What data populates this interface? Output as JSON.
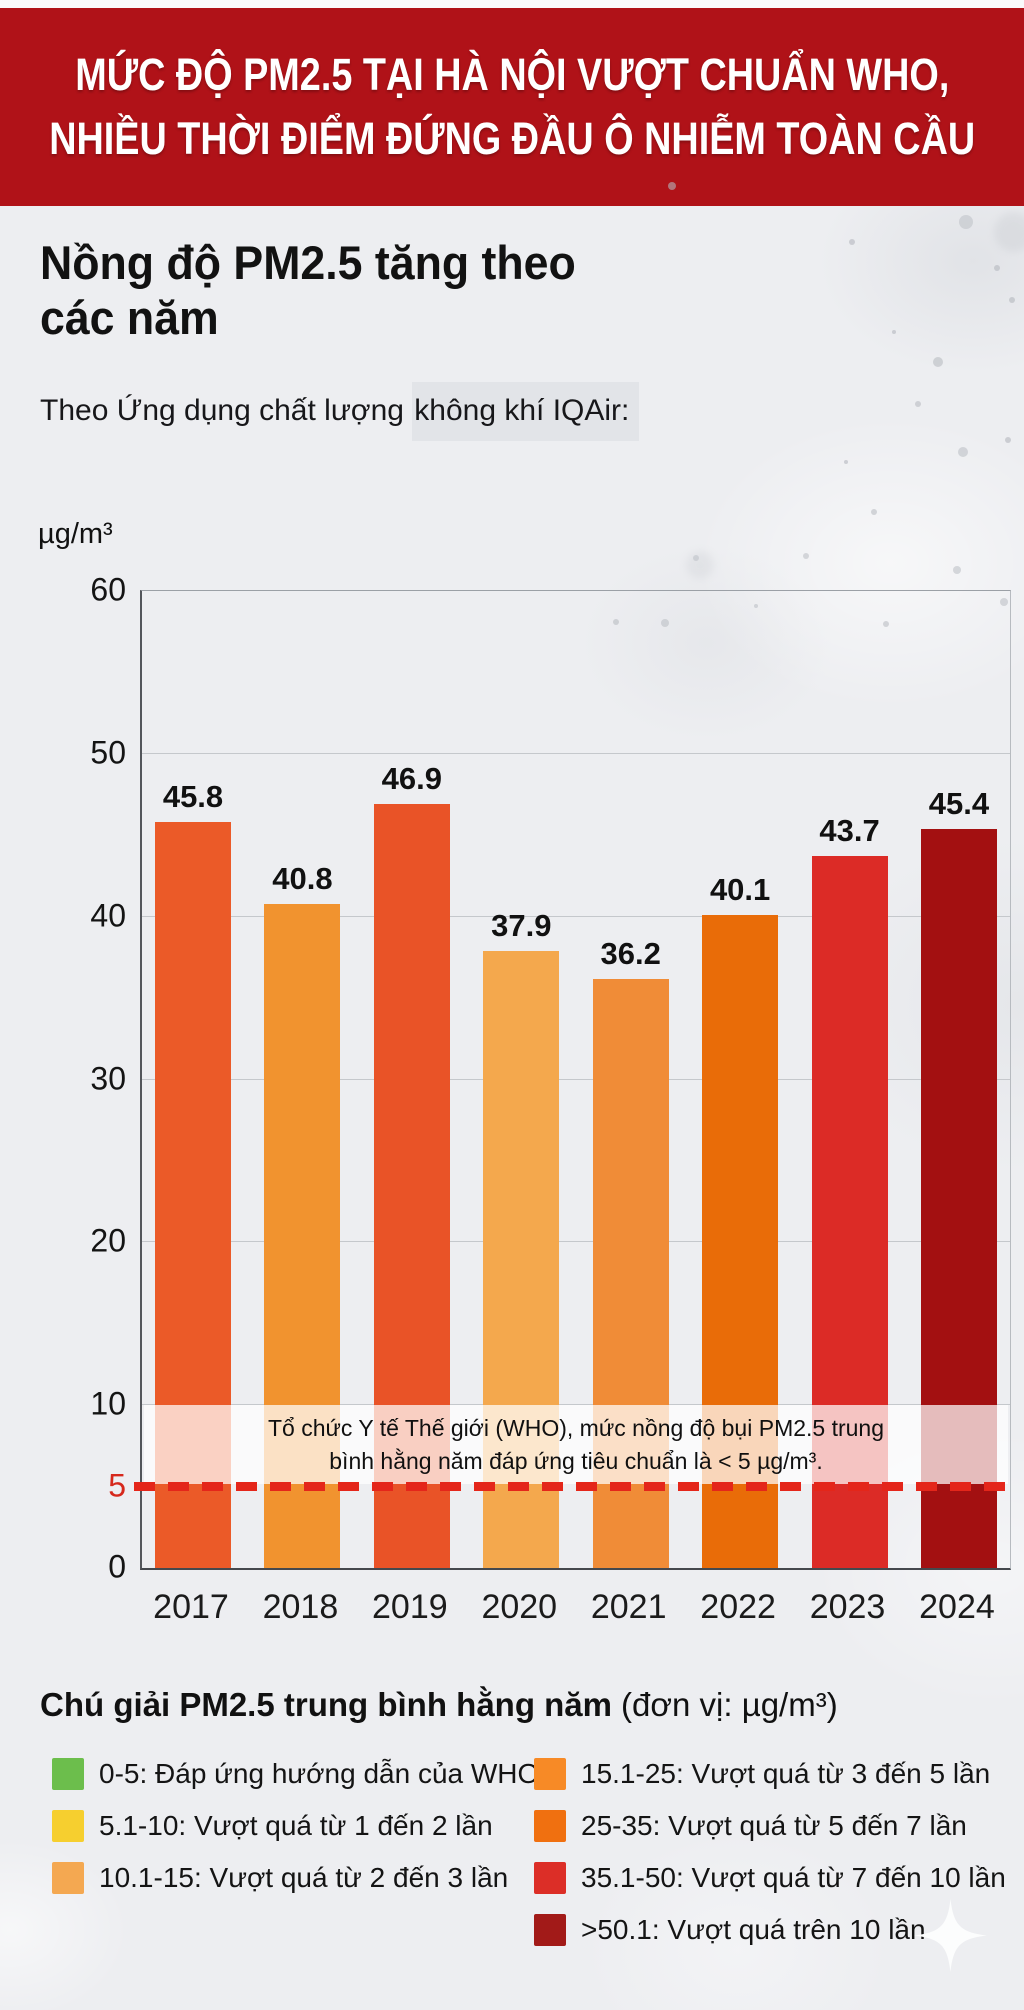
{
  "banner": {
    "line1": "MỨC ĐỘ PM2.5 TẠI HÀ NỘI VƯỢT CHUẨN WHO,",
    "line2": "NHIỀU THỜI ĐIỂM ĐỨNG ĐẦU Ô NHIỄM TOÀN CẦU",
    "bg_color": "#B01218"
  },
  "title": {
    "line1": "Nồng độ PM2.5 tăng theo",
    "line2": "các năm"
  },
  "subtitle": {
    "prefix": "Theo Ứng dụng chất lượng ",
    "highlight": "không khí IQAir:"
  },
  "chart_data": {
    "type": "bar",
    "title": "Nồng độ PM2.5 tăng theo các năm",
    "unit": "µg/m³",
    "categories": [
      "2017",
      "2018",
      "2019",
      "2020",
      "2021",
      "2022",
      "2023",
      "2024"
    ],
    "values": [
      45.8,
      40.8,
      46.9,
      37.9,
      36.2,
      40.1,
      43.7,
      45.4
    ],
    "bar_colors": [
      "#EB5A28",
      "#F1932F",
      "#E95327",
      "#F4A84D",
      "#F08C37",
      "#E96C08",
      "#DC2B26",
      "#A31011"
    ],
    "ylim": [
      0,
      60
    ],
    "yticks": [
      0,
      5,
      10,
      20,
      30,
      40,
      50,
      60
    ],
    "grid_ticks": [
      10,
      20,
      30,
      40,
      50
    ],
    "red_tick": 5,
    "who_line_value": 5,
    "who_line_color": "#E4261A",
    "annotation_line1": "Tổ chức Y tế Thế giới (WHO), mức nồng độ bụi PM2.5 trung",
    "annotation_line2": "bình hằng năm đáp ứng tiêu chuẩn là < 5 µg/m³.",
    "grid": true,
    "legend_position": "below"
  },
  "legend": {
    "title_bold": "Chú giải PM2.5 trung bình hằng năm",
    "title_regular": "(đơn vị: µg/m³)",
    "items": [
      {
        "label": "0-5: Đáp ứng hướng dẫn của WHO",
        "color": "#6CBE4C"
      },
      {
        "label": "5.1-10: Vượt quá từ 1 đến 2 lần",
        "color": "#F6CF2F"
      },
      {
        "label": "10.1-15: Vượt quá từ 2 đến 3 lần",
        "color": "#F4A851"
      },
      {
        "label": "15.1-25: Vượt quá từ 3 đến 5 lần",
        "color": "#F78A26"
      },
      {
        "label": "25-35: Vượt quá từ 5 đến 7 lần",
        "color": "#F07010"
      },
      {
        "label": "35.1-50: Vượt quá từ 7 đến 10 lần",
        "color": "#DC2E27"
      },
      {
        "label": ">50.1: Vượt quá trên 10 lần",
        "color": "#A21A18"
      }
    ]
  }
}
